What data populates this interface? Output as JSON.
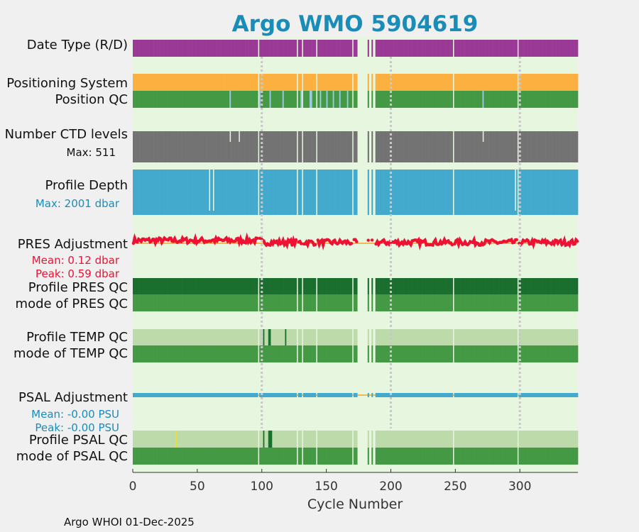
{
  "chart_data": {
    "type": "bar",
    "title": "Argo WMO 5904619",
    "xlabel": "Cycle Number",
    "xlim": [
      0,
      345
    ],
    "xticks": [
      0,
      50,
      100,
      150,
      200,
      250,
      300
    ],
    "footer": "Argo WHOI 01-Dec-2025",
    "missing_cycles": [
      97,
      127,
      131,
      142,
      170,
      174,
      175,
      176,
      177,
      178,
      179,
      180,
      181,
      183,
      184,
      186,
      187,
      248,
      298
    ],
    "dotted_guides": [
      100,
      200,
      300
    ],
    "rows": [
      {
        "key": "date_type",
        "label": "Date Type (R/D)",
        "fill": "#9b3a96",
        "value": "R (real-time) all cycles"
      },
      {
        "key": "positioning",
        "label": "Positioning System",
        "fill": "#fbb040",
        "value": "GPS all cycles"
      },
      {
        "key": "position_qc",
        "label": "Position QC",
        "fill": "#449944",
        "flag_cycles": [
          75,
          98,
          106,
          116,
          130,
          137,
          138,
          145,
          150,
          155,
          160,
          166,
          271
        ],
        "flag_color": "#9ecae1"
      },
      {
        "key": "ctd_levels",
        "label": "Number CTD levels",
        "sublabel": "Max: 511",
        "fill": "#737373",
        "max": 511,
        "short_cycles": [
          75,
          82,
          271
        ]
      },
      {
        "key": "profile_depth",
        "label": "Profile Depth",
        "sublabel": "Max: 2001 dbar",
        "fill": "#43a9cd",
        "max": 2001,
        "short_cycles": [
          59,
          62,
          296
        ]
      },
      {
        "key": "pres_adjustment",
        "label": "PRES Adjustment",
        "sublabels": [
          "Mean: 0.12 dbar",
          "Peak: 0.59 dbar"
        ],
        "color": "#ee1133",
        "mean": 0.12,
        "peak": 0.59
      },
      {
        "key": "profile_pres_qc",
        "label": "Profile PRES QC",
        "fill": "#1a6e2e",
        "value": "A"
      },
      {
        "key": "mode_pres_qc",
        "label": "mode of PRES QC",
        "fill": "#449944",
        "value": "1"
      },
      {
        "key": "profile_temp_qc",
        "label": "Profile TEMP QC",
        "fill": "#bcdaaa",
        "value": "A",
        "flag_cycles": [
          101,
          105,
          106,
          118
        ],
        "flag_color": "#1a6e2e"
      },
      {
        "key": "mode_temp_qc",
        "label": "mode of TEMP QC",
        "fill": "#449944",
        "value": "1"
      },
      {
        "key": "psal_adjustment",
        "label": "PSAL Adjustment",
        "sublabels": [
          "Mean: -0.00 PSU",
          "Peak: -0.00 PSU"
        ],
        "color": "#43a9cd",
        "mean": 0.0,
        "peak": 0.0
      },
      {
        "key": "profile_psal_qc",
        "label": "Profile PSAL QC",
        "fill": "#bcdaaa",
        "value": "A",
        "flag_cycles": [
          101,
          105,
          106,
          107
        ],
        "flag_color": "#1a6e2e",
        "yellow_cycles": [
          33
        ]
      },
      {
        "key": "mode_psal_qc",
        "label": "mode of PSAL QC",
        "fill": "#449944",
        "value": "1"
      }
    ],
    "colors": {
      "plot_bg": "#e6f6df",
      "page_bg": "#f0f0f0",
      "title": "#1a8cb8",
      "sublabel_blue": "#1a8cb8",
      "sublabel_red": "#ee1133"
    }
  }
}
